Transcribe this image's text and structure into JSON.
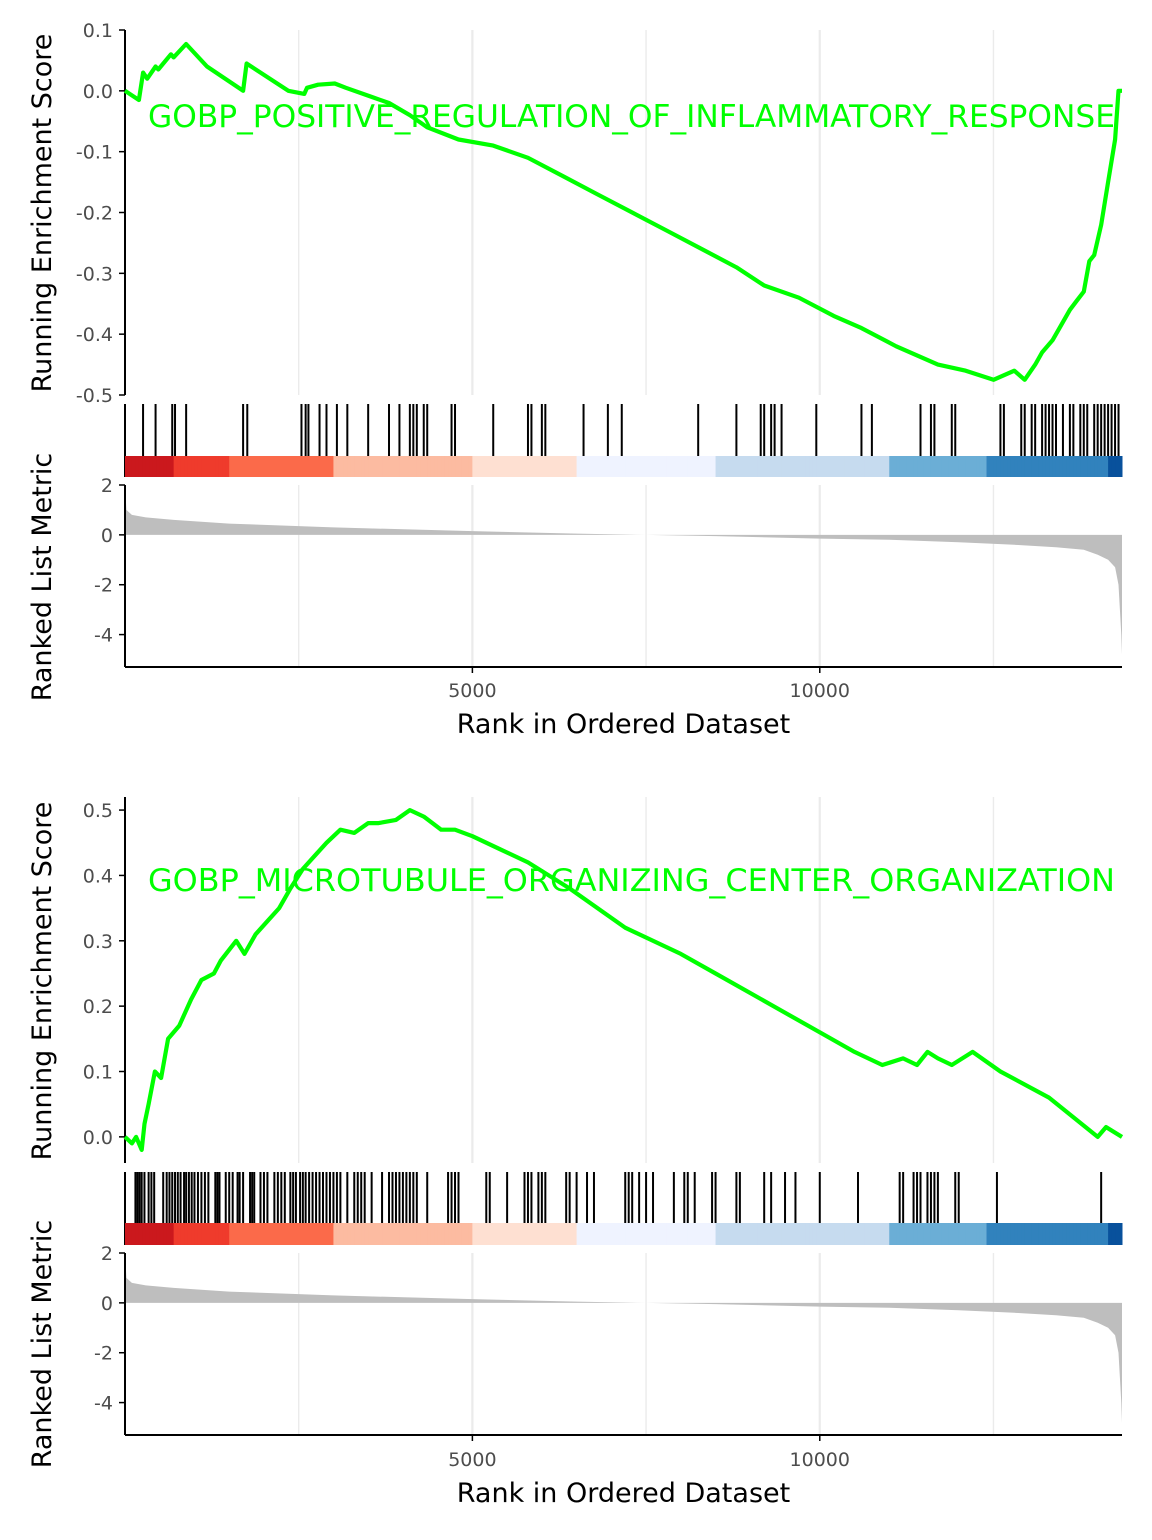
{
  "colors": {
    "curve": "#00ff00",
    "hits": "#000000",
    "metric_fill": "#bebebe",
    "grid": "#ebebeb",
    "axis": "#000000",
    "red_scale": [
      "#67000d",
      "#cb181d",
      "#ef3b2c",
      "#fb6a4a",
      "#fcbba1",
      "#fee0d2"
    ],
    "blue_scale": [
      "#eff3ff",
      "#c6dbef",
      "#6baed6",
      "#3182bd",
      "#08519c"
    ]
  },
  "axis_titles": {
    "es_ylabel": "Running Enrichment Score",
    "metric_ylabel": "Ranked List Metric",
    "xlabel": "Rank in Ordered Dataset"
  },
  "chart_data": [
    {
      "type": "line",
      "title": "GOBP_POSITIVE_REGULATION_OF_INFLAMMATORY_RESPONSE",
      "xlabel": "Rank in Ordered Dataset",
      "ylabel": "Running Enrichment Score",
      "xlim": [
        0,
        14350
      ],
      "ylim": [
        -0.5,
        0.1
      ],
      "x_ticks": [
        5000,
        10000
      ],
      "x_tick_labels": [
        "5000",
        "10000"
      ],
      "y_ticks": [
        0.1,
        0.0,
        -0.1,
        -0.2,
        -0.3,
        -0.4,
        -0.5
      ],
      "y_tick_labels": [
        "0.1",
        "0.0",
        "-0.1",
        "-0.2",
        "-0.3",
        "-0.4",
        "-0.5"
      ],
      "grid": true,
      "series": [
        {
          "x": [
            0,
            200,
            260,
            320,
            440,
            480,
            660,
            700,
            880,
            1180,
            1700,
            1750,
            2350,
            2580,
            2620,
            2780,
            3020,
            3180,
            3550,
            3800,
            4100,
            4350,
            4800,
            5300,
            5800,
            6300,
            6800,
            7300,
            7800,
            8300,
            8800,
            9200,
            9700,
            10200,
            10600,
            11100,
            11700,
            12100,
            12500,
            12800,
            12950,
            13100,
            13200,
            13350,
            13450,
            13600,
            13700,
            13800,
            13880,
            13950,
            14050,
            14150,
            14250,
            14300,
            14350
          ],
          "y": [
            0.0,
            -0.015,
            0.03,
            0.02,
            0.04,
            0.035,
            0.06,
            0.055,
            0.077,
            0.04,
            0.0,
            0.045,
            0.0,
            -0.005,
            0.005,
            0.01,
            0.012,
            0.005,
            -0.01,
            -0.02,
            -0.04,
            -0.06,
            -0.08,
            -0.09,
            -0.11,
            -0.14,
            -0.17,
            -0.2,
            -0.23,
            -0.26,
            -0.29,
            -0.32,
            -0.34,
            -0.37,
            -0.39,
            -0.42,
            -0.45,
            -0.46,
            -0.475,
            -0.46,
            -0.475,
            -0.45,
            -0.43,
            -0.41,
            -0.39,
            -0.36,
            -0.345,
            -0.33,
            -0.28,
            -0.27,
            -0.22,
            -0.15,
            -0.08,
            0.0,
            0.0
          ]
        }
      ],
      "hits": [
        260,
        440,
        680,
        720,
        880,
        1700,
        1760,
        2540,
        2600,
        2640,
        2800,
        2900,
        3050,
        3200,
        3500,
        3800,
        3950,
        4100,
        4150,
        4200,
        4300,
        4350,
        4700,
        4750,
        5300,
        5800,
        5850,
        6000,
        6050,
        6600,
        6950,
        7150,
        8250,
        8800,
        9150,
        9200,
        9300,
        9350,
        9450,
        9950,
        10600,
        10750,
        11450,
        11600,
        11650,
        11900,
        11950,
        12600,
        12650,
        12900,
        12950,
        13050,
        13100,
        13200,
        13250,
        13300,
        13350,
        13400,
        13500,
        13600,
        13650,
        13750,
        13800,
        13850,
        13950,
        14000,
        14050,
        14100,
        14150,
        14200,
        14250,
        14300
      ],
      "metric": {
        "x": [
          0,
          20,
          100,
          300,
          700,
          1500,
          3000,
          5000,
          6500,
          7500,
          8500,
          10000,
          11000,
          12000,
          12800,
          13400,
          13800,
          14000,
          14150,
          14250,
          14300,
          14340,
          14350
        ],
        "y": [
          2.0,
          1.0,
          0.8,
          0.7,
          0.6,
          0.45,
          0.3,
          0.15,
          0.05,
          0.0,
          -0.05,
          -0.15,
          -0.2,
          -0.3,
          -0.4,
          -0.5,
          -0.6,
          -0.8,
          -1.0,
          -1.3,
          -2.0,
          -4.0,
          -4.8
        ],
        "ylim": [
          -5.3,
          2.0
        ],
        "y_ticks": [
          2,
          0,
          -2,
          -4
        ],
        "y_tick_labels": [
          "2",
          "0",
          "-2",
          "-4"
        ]
      }
    },
    {
      "type": "line",
      "title": "GOBP_MICROTUBULE_ORGANIZING_CENTER_ORGANIZATION",
      "xlabel": "Rank in Ordered Dataset",
      "ylabel": "Running Enrichment Score",
      "xlim": [
        0,
        14350
      ],
      "ylim": [
        -0.04,
        0.52
      ],
      "x_ticks": [
        5000,
        10000
      ],
      "x_tick_labels": [
        "5000",
        "10000"
      ],
      "y_ticks": [
        0.5,
        0.4,
        0.3,
        0.2,
        0.1,
        0.0
      ],
      "y_tick_labels": [
        "0.5",
        "0.4",
        "0.3",
        "0.2",
        "0.1",
        "0.0"
      ],
      "grid": true,
      "series": [
        {
          "x": [
            0,
            100,
            160,
            240,
            280,
            340,
            430,
            520,
            620,
            780,
            950,
            1100,
            1280,
            1380,
            1600,
            1720,
            1880,
            2050,
            2220,
            2380,
            2560,
            2730,
            2900,
            3100,
            3300,
            3500,
            3650,
            3900,
            4100,
            4300,
            4550,
            4750,
            5000,
            5400,
            5800,
            6400,
            7200,
            8000,
            8500,
            9000,
            9500,
            10000,
            10500,
            10900,
            11200,
            11400,
            11550,
            11700,
            11900,
            12200,
            12600,
            13300,
            14000,
            14120,
            14350
          ],
          "y": [
            0.0,
            -0.01,
            0.0,
            -0.02,
            0.02,
            0.05,
            0.1,
            0.09,
            0.15,
            0.17,
            0.21,
            0.24,
            0.25,
            0.27,
            0.3,
            0.28,
            0.31,
            0.33,
            0.35,
            0.38,
            0.41,
            0.43,
            0.45,
            0.47,
            0.465,
            0.48,
            0.48,
            0.485,
            0.5,
            0.49,
            0.47,
            0.47,
            0.46,
            0.44,
            0.42,
            0.38,
            0.32,
            0.28,
            0.25,
            0.22,
            0.19,
            0.16,
            0.13,
            0.11,
            0.12,
            0.11,
            0.13,
            0.12,
            0.11,
            0.13,
            0.1,
            0.06,
            0.0,
            0.015,
            0.0
          ]
        }
      ],
      "hits": [
        150,
        180,
        210,
        240,
        280,
        340,
        380,
        420,
        550,
        600,
        640,
        680,
        720,
        760,
        800,
        850,
        880,
        920,
        960,
        1000,
        1050,
        1100,
        1150,
        1200,
        1300,
        1330,
        1360,
        1450,
        1500,
        1550,
        1620,
        1650,
        1700,
        1800,
        1830,
        1860,
        1950,
        2000,
        2050,
        2150,
        2200,
        2250,
        2300,
        2380,
        2420,
        2460,
        2520,
        2560,
        2600,
        2650,
        2700,
        2750,
        2800,
        2850,
        2900,
        2950,
        3000,
        3050,
        3100,
        3200,
        3300,
        3350,
        3400,
        3450,
        3550,
        3700,
        3800,
        3850,
        3900,
        3950,
        4000,
        4050,
        4100,
        4150,
        4200,
        4350,
        4650,
        4700,
        4750,
        4800,
        5200,
        5250,
        5500,
        5750,
        5800,
        5850,
        5950,
        6000,
        6050,
        6350,
        6400,
        6500,
        6650,
        6750,
        7200,
        7250,
        7300,
        7400,
        7500,
        7600,
        7900,
        8050,
        8100,
        8200,
        8450,
        8500,
        8800,
        8850,
        9200,
        9300,
        9500,
        9650,
        10000,
        10550,
        11150,
        11200,
        11350,
        11400,
        11450,
        11550,
        11600,
        11650,
        11700,
        11950,
        12000,
        12550,
        14050
      ],
      "metric": {
        "x": [
          0,
          20,
          100,
          300,
          700,
          1500,
          3000,
          5000,
          6500,
          7500,
          8500,
          10000,
          11000,
          12000,
          12800,
          13400,
          13800,
          14000,
          14150,
          14250,
          14300,
          14340,
          14350
        ],
        "y": [
          2.0,
          1.0,
          0.8,
          0.7,
          0.6,
          0.45,
          0.3,
          0.15,
          0.05,
          0.0,
          -0.05,
          -0.15,
          -0.2,
          -0.3,
          -0.4,
          -0.5,
          -0.6,
          -0.8,
          -1.0,
          -1.3,
          -2.0,
          -4.0,
          -4.8
        ],
        "ylim": [
          -5.3,
          2.0
        ],
        "y_ticks": [
          2,
          0,
          -2,
          -4
        ],
        "y_tick_labels": [
          "2",
          "0",
          "-2",
          "-4"
        ]
      }
    }
  ]
}
